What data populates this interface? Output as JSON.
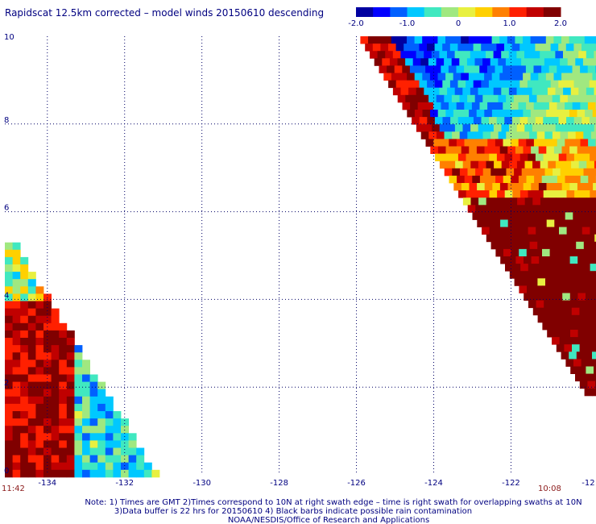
{
  "title": "Rapidscat 12.5km corrected – model winds 20150610 descending",
  "colorbar": {
    "ticks": [
      {
        "value": -2.0,
        "label": "-2.0"
      },
      {
        "value": -1.0,
        "label": "-1.0"
      },
      {
        "value": 0,
        "label": "0"
      },
      {
        "value": 1.0,
        "label": "1.0"
      },
      {
        "value": 2.0,
        "label": "2.0"
      }
    ],
    "colors": [
      "#0000a0",
      "#0000ff",
      "#0060ff",
      "#00c8ff",
      "#40e8c0",
      "#a0e880",
      "#e8f040",
      "#ffd000",
      "#ff8000",
      "#ff2000",
      "#c00000",
      "#800000"
    ]
  },
  "axes": {
    "x_ticks": [
      "-134",
      "-132",
      "-130",
      "-128",
      "-126",
      "-124",
      "-122",
      "-12"
    ],
    "y_ticks": [
      "0",
      "2",
      "4",
      "6",
      "8",
      "10"
    ],
    "xlim": [
      -135.1,
      -119.8
    ],
    "ylim": [
      0,
      10
    ]
  },
  "times": {
    "left": "11:42",
    "right": "10:08"
  },
  "notes": [
    "Note: 1) Times are GMT 2)Times correspond to 10N at right swath edge – time is right swath for overlapping swaths at 10N",
    "3)Data buffer is 22 hrs for 20150610 4) Black barbs indicate possible rain contamination",
    "NOAA/NESDIS/Office of Research and Applications"
  ],
  "swaths": {
    "right": {
      "lon_range": [
        -125.9,
        -119.8
      ],
      "lat_range": [
        1.9,
        10
      ]
    },
    "left": {
      "lon_range": [
        -135.1,
        -131.2
      ],
      "lat_range": [
        0,
        5.3
      ]
    }
  }
}
